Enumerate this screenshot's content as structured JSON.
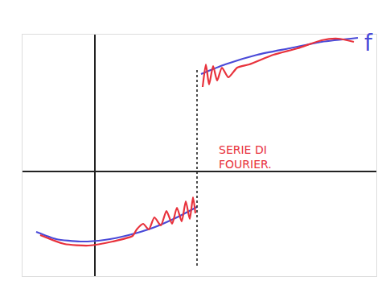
{
  "chart_data": {
    "type": "line",
    "grid": false,
    "tick_labels": false,
    "xlim": [
      -0.9,
      3.5
    ],
    "ylim": [
      -1.3,
      1.7
    ],
    "series": [
      {
        "color": "#4a4ad8",
        "line_style": "solid",
        "x": [
          -0.73,
          -0.48,
          -0.18,
          0.12,
          0.42,
          0.72,
          1.02,
          1.27,
          null,
          1.32,
          1.62,
          2.02,
          2.42,
          2.82,
          3.27
        ],
        "values": [
          -0.75,
          -0.84,
          -0.87,
          -0.85,
          -0.79,
          -0.7,
          -0.57,
          -0.44,
          null,
          1.21,
          1.33,
          1.45,
          1.53,
          1.61,
          1.66
        ]
      },
      {
        "color": "#e8323c",
        "line_style": "solid",
        "x": [
          -0.68,
          -0.38,
          -0.08,
          0.22,
          0.47,
          0.52,
          0.6,
          0.67,
          0.74,
          0.82,
          0.89,
          0.96,
          1.02,
          1.08,
          1.13,
          1.18,
          1.22,
          1.25,
          null,
          1.34,
          1.38,
          1.42,
          1.47,
          1.52,
          1.58,
          1.66,
          1.77,
          1.92,
          2.22,
          2.52,
          2.82,
          3.02,
          3.22
        ],
        "values": [
          -0.79,
          -0.9,
          -0.92,
          -0.87,
          -0.8,
          -0.72,
          -0.65,
          -0.72,
          -0.57,
          -0.67,
          -0.49,
          -0.65,
          -0.45,
          -0.62,
          -0.37,
          -0.59,
          -0.32,
          -0.52,
          null,
          1.05,
          1.33,
          1.08,
          1.31,
          1.13,
          1.29,
          1.17,
          1.29,
          1.33,
          1.45,
          1.53,
          1.63,
          1.65,
          1.61
        ]
      }
    ],
    "vertical_line": {
      "x": 1.27,
      "y": [
        -1.17,
        1.28
      ],
      "line_style": "dot"
    },
    "annotations": [
      {
        "text": "f",
        "x": 3.4,
        "y": 1.6,
        "color": "#4a4ad8"
      },
      {
        "text": [
          "SERIE DI",
          "FOURIER."
        ],
        "x": 1.52,
        "y": 0.18,
        "color": "#e8323c"
      }
    ]
  }
}
